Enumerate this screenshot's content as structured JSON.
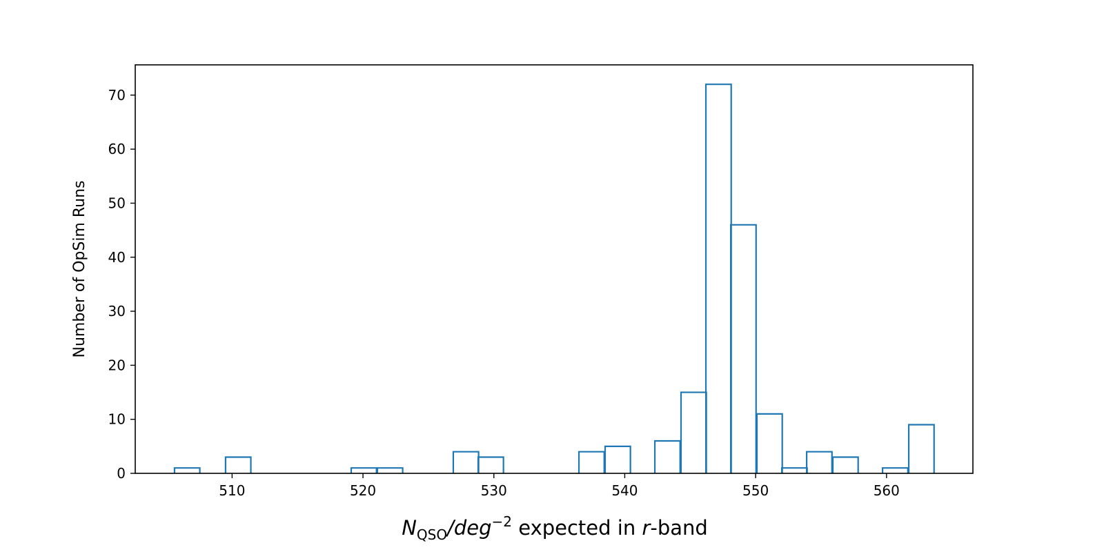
{
  "chart_data": {
    "type": "histogram",
    "title": "",
    "xlabel": {
      "symbol": "N",
      "subscript": "QSO",
      "slash": "/",
      "unit": "deg",
      "exponent": "−2",
      "middle": " expected in ",
      "band": "r",
      "suffix": "-band"
    },
    "ylabel": "Number of OpSim Runs",
    "xlim": [
      502.6,
      566.6
    ],
    "ylim": [
      0,
      75.6
    ],
    "xticks": [
      510,
      520,
      530,
      540,
      550,
      560
    ],
    "yticks": [
      0,
      10,
      20,
      30,
      40,
      50,
      60,
      70
    ],
    "grid": false,
    "bin_width": 1.933,
    "bins": [
      {
        "x0": 505.6,
        "count": 1
      },
      {
        "x0": 507.5,
        "count": 0
      },
      {
        "x0": 509.5,
        "count": 3
      },
      {
        "x0": 511.4,
        "count": 0
      },
      {
        "x0": 513.3,
        "count": 0
      },
      {
        "x0": 515.3,
        "count": 0
      },
      {
        "x0": 517.2,
        "count": 0
      },
      {
        "x0": 519.1,
        "count": 1
      },
      {
        "x0": 521.1,
        "count": 1
      },
      {
        "x0": 523.0,
        "count": 0
      },
      {
        "x0": 524.9,
        "count": 0
      },
      {
        "x0": 526.9,
        "count": 4
      },
      {
        "x0": 528.8,
        "count": 3
      },
      {
        "x0": 530.7,
        "count": 0
      },
      {
        "x0": 532.7,
        "count": 0
      },
      {
        "x0": 534.6,
        "count": 0
      },
      {
        "x0": 536.5,
        "count": 4
      },
      {
        "x0": 538.5,
        "count": 5
      },
      {
        "x0": 540.4,
        "count": 0
      },
      {
        "x0": 542.3,
        "count": 6
      },
      {
        "x0": 544.3,
        "count": 15
      },
      {
        "x0": 546.2,
        "count": 72
      },
      {
        "x0": 548.1,
        "count": 46
      },
      {
        "x0": 550.1,
        "count": 11
      },
      {
        "x0": 552.0,
        "count": 1
      },
      {
        "x0": 553.9,
        "count": 4
      },
      {
        "x0": 555.9,
        "count": 3
      },
      {
        "x0": 557.8,
        "count": 0
      },
      {
        "x0": 559.7,
        "count": 1
      },
      {
        "x0": 561.7,
        "count": 9
      }
    ],
    "color": "#1f77b4"
  }
}
